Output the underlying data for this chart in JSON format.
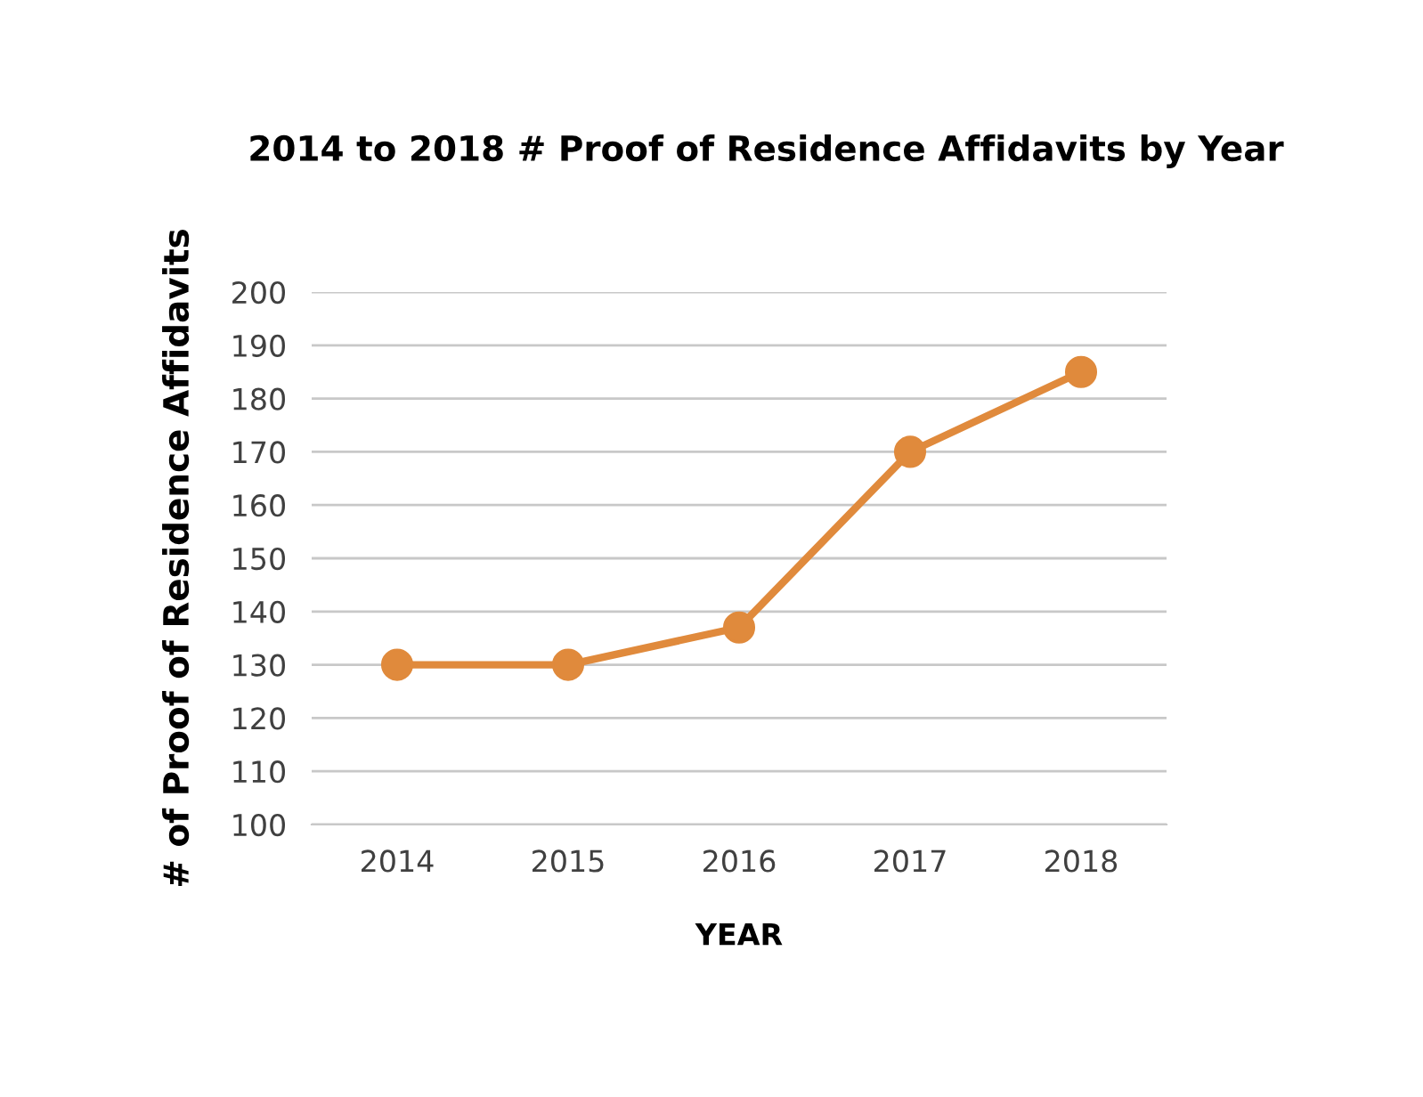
{
  "chart_data": {
    "type": "line",
    "title": "2014 to 2018 # Proof of Residence Affidavits by Year",
    "xlabel": "YEAR",
    "ylabel": "# of Proof of Residence Affidavits",
    "categories": [
      "2014",
      "2015",
      "2016",
      "2017",
      "2018"
    ],
    "series": [
      {
        "color": "#e08a3c",
        "values": [
          130,
          130,
          137,
          170,
          185
        ]
      }
    ],
    "ylim": [
      100,
      200
    ],
    "yticks": [
      100,
      110,
      120,
      130,
      140,
      150,
      160,
      170,
      180,
      190,
      200
    ],
    "grid": "y",
    "marker": "circle",
    "line_style": "solid"
  }
}
